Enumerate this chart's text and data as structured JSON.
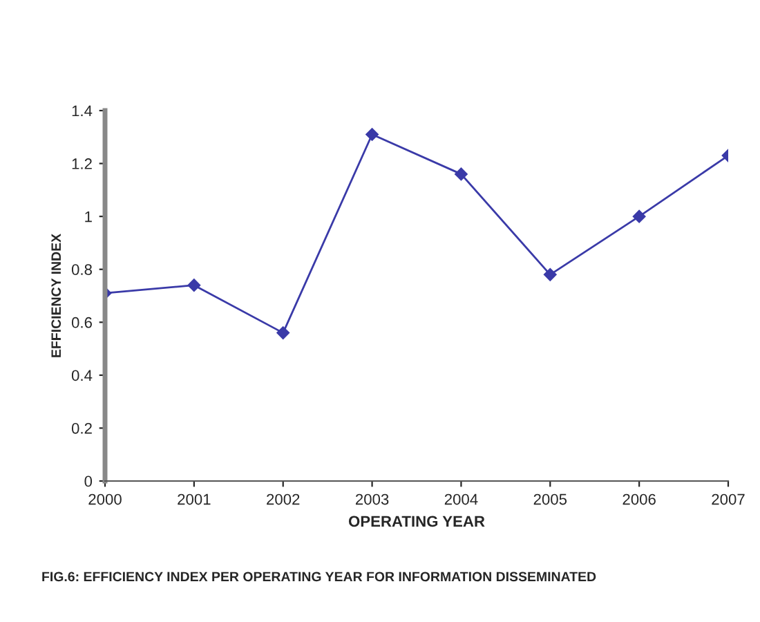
{
  "chart_data": {
    "type": "line",
    "xlabel": "OPERATING YEAR",
    "ylabel": "EFFICIENCY INDEX",
    "x": [
      2000,
      2001,
      2002,
      2003,
      2004,
      2005,
      2006,
      2007
    ],
    "series": [
      {
        "color": "#3a3aa8",
        "values": [
          0.71,
          0.74,
          0.56,
          1.31,
          1.16,
          0.78,
          1.0,
          1.23
        ]
      }
    ],
    "xlim": [
      2000,
      2007
    ],
    "xticks": [
      2000,
      2001,
      2002,
      2003,
      2004,
      2005,
      2006,
      2007
    ],
    "ylim": [
      0,
      1.4
    ],
    "yticks": [
      0,
      {
        "value": 0.2,
        "label": "0.2"
      },
      {
        "value": 0.4,
        "label": "0.4"
      },
      {
        "value": 0.6,
        "label": "0.6"
      },
      {
        "value": 0.8,
        "label": "0.8"
      },
      1,
      {
        "value": 1.2,
        "label": "1.2"
      },
      {
        "value": 1.4,
        "label": "1.4"
      }
    ],
    "grid": false,
    "legend": false,
    "marker": "diamond",
    "line_style": "solid",
    "annotations": [
      "FIG.6: EFFICIENCY INDEX PER OPERATING YEAR FOR INFORMATION DISSEMINATED"
    ]
  }
}
